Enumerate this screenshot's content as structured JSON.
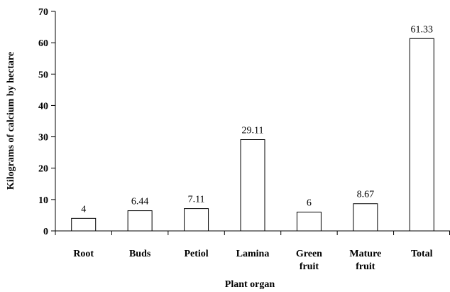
{
  "chart_data": {
    "type": "bar",
    "categories": [
      "Root",
      "Buds",
      "Petiol",
      "Lamina",
      "Green fruit",
      "Mature fruit",
      "Total"
    ],
    "category_lines": [
      [
        "Root"
      ],
      [
        "Buds"
      ],
      [
        "Petiol"
      ],
      [
        "Lamina"
      ],
      [
        "Green",
        "fruit"
      ],
      [
        "Mature",
        "fruit"
      ],
      [
        "Total"
      ]
    ],
    "values": [
      4,
      6.44,
      7.11,
      29.11,
      6,
      8.67,
      61.33
    ],
    "data_labels": [
      "4",
      "6.44",
      "7.11",
      "29.11",
      "6",
      "8.67",
      "61.33"
    ],
    "title": "",
    "xlabel": "Plant organ",
    "ylabel": "Kilograms of calcium by hectare",
    "ylim": [
      0,
      70
    ],
    "yticks": [
      0,
      10,
      20,
      30,
      40,
      50,
      60,
      70
    ],
    "grid": false,
    "legend": "none",
    "colors": {
      "bar_fill": "#ffffff",
      "bar_stroke": "#000000",
      "axis": "#000000"
    }
  }
}
